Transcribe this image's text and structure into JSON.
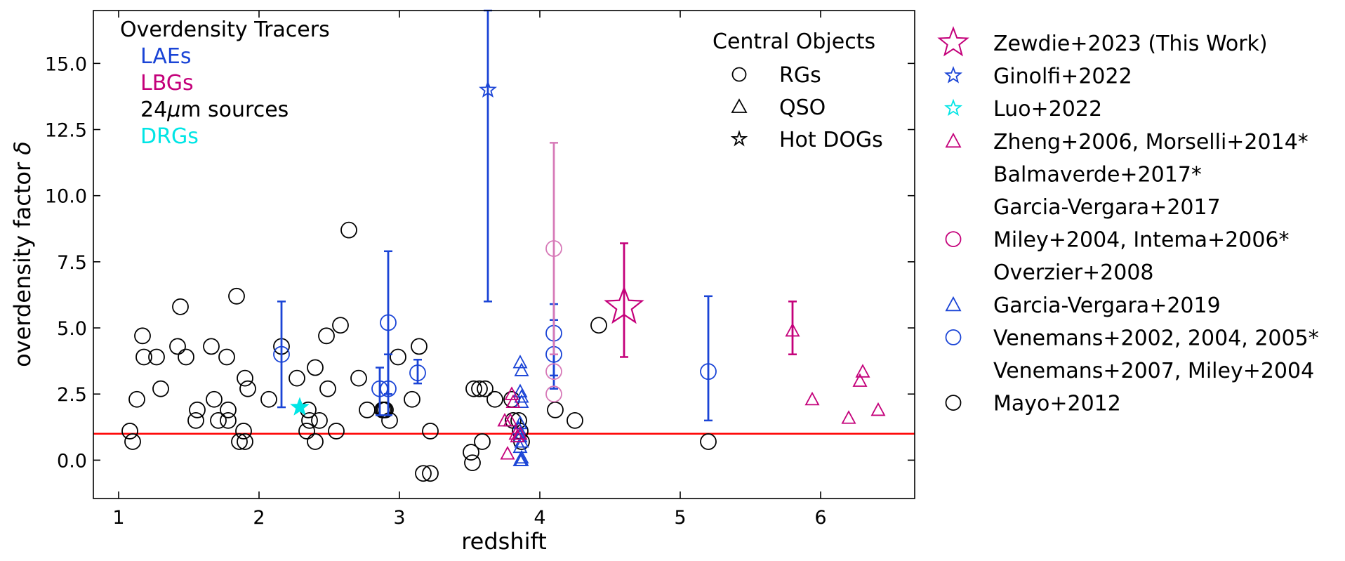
{
  "chart_data": {
    "type": "scatter",
    "title": "",
    "xlabel": "redshift",
    "ylabel": "overdensity factor δ",
    "ylabel_parts": {
      "text": "overdensity factor ",
      "symbol": "δ"
    },
    "xlim": [
      0.82,
      6.67
    ],
    "ylim": [
      -1.45,
      17.0
    ],
    "x_ticks": [
      1,
      2,
      3,
      4,
      5,
      6
    ],
    "x_tick_labels": [
      "1",
      "2",
      "3",
      "4",
      "5",
      "6"
    ],
    "y_ticks": [
      0.0,
      2.5,
      5.0,
      7.5,
      10.0,
      12.5,
      15.0
    ],
    "y_tick_labels": [
      "0.0",
      "2.5",
      "5.0",
      "7.5",
      "10.0",
      "12.5",
      "15.0"
    ],
    "reference_line": {
      "y": 1.0,
      "color": "#ff0000"
    },
    "colors": {
      "black": "#000000",
      "blue": "#1a44d6",
      "magenta": "#c4007a",
      "pink": "#d77ab8",
      "cyan": "#00e5e5",
      "red": "#ff0000"
    },
    "tracers_legend": {
      "title": "Overdensity Tracers",
      "items": [
        {
          "label": "LAEs",
          "color": "#1a44d6"
        },
        {
          "label": "LBGs",
          "color": "#c4007a"
        },
        {
          "label": "24μm sources",
          "label_prefix": "24",
          "label_mu": "μ",
          "label_suffix": "m sources",
          "color": "#000000"
        },
        {
          "label": "DRGs",
          "color": "#00e5e5"
        }
      ]
    },
    "central_legend": {
      "title": "Central Objects",
      "items": [
        {
          "label": "RGs",
          "marker": "circle"
        },
        {
          "label": "QSO",
          "marker": "triangle"
        },
        {
          "label": "Hot DOGs",
          "marker": "star"
        }
      ]
    },
    "refs_legend": [
      {
        "label": "Zewdie+2023 (This Work)",
        "marker": "star",
        "color": "#c4007a",
        "size": "big"
      },
      {
        "label": "Ginolfi+2022",
        "marker": "star",
        "color": "#1a44d6"
      },
      {
        "label": "Luo+2022",
        "marker": "star",
        "color": "#00e5e5"
      },
      {
        "label": "Zheng+2006, Morselli+2014*",
        "marker": "triangle",
        "color": "#c4007a"
      },
      {
        "label": "Balmaverde+2017*",
        "marker": "none"
      },
      {
        "label": "Garcia-Vergara+2017",
        "marker": "none"
      },
      {
        "label": "Miley+2004, Intema+2006*",
        "marker": "circle",
        "color": "#c4007a"
      },
      {
        "label": "Overzier+2008",
        "marker": "none"
      },
      {
        "label": "Garcia-Vergara+2019",
        "marker": "triangle",
        "color": "#1a44d6"
      },
      {
        "label": "Venemans+2002, 2004, 2005*",
        "marker": "circle",
        "color": "#1a44d6"
      },
      {
        "label": "Venemans+2007, Miley+2004",
        "marker": "none"
      },
      {
        "label": "Mayo+2012",
        "marker": "circle",
        "color": "#000000"
      }
    ],
    "series": [
      {
        "name": "Mayo+2012",
        "marker": "circle",
        "color": "#000000",
        "x": [
          1.08,
          1.1,
          1.13,
          1.17,
          1.18,
          1.27,
          1.3,
          1.42,
          1.44,
          1.48,
          1.55,
          1.56,
          1.66,
          1.68,
          1.71,
          1.77,
          1.78,
          1.78,
          1.84,
          1.86,
          1.89,
          1.9,
          1.9,
          1.92,
          2.07,
          2.16,
          2.27,
          2.34,
          2.35,
          2.36,
          2.4,
          2.4,
          2.43,
          2.48,
          2.49,
          2.55,
          2.58,
          2.64,
          2.71,
          2.77,
          2.88,
          2.89,
          2.9,
          2.93,
          2.99,
          3.09,
          3.14,
          3.17,
          3.22,
          3.22,
          3.51,
          3.52,
          3.53,
          3.57,
          3.59,
          3.61,
          3.68,
          3.8,
          3.81,
          3.85,
          3.86,
          3.87,
          4.11,
          4.25,
          4.42,
          5.2
        ],
        "y": [
          1.1,
          0.7,
          2.3,
          4.7,
          3.9,
          3.9,
          2.7,
          4.3,
          5.8,
          3.9,
          1.5,
          1.9,
          4.3,
          2.3,
          1.5,
          3.9,
          1.9,
          1.5,
          6.2,
          0.7,
          1.1,
          0.7,
          3.1,
          2.7,
          2.3,
          4.3,
          3.1,
          1.1,
          1.9,
          1.5,
          3.5,
          0.7,
          1.5,
          4.7,
          2.7,
          1.1,
          5.1,
          8.7,
          3.1,
          1.9,
          1.9,
          1.9,
          1.9,
          1.5,
          3.9,
          2.3,
          4.3,
          -0.5,
          -0.5,
          1.1,
          0.3,
          -0.1,
          2.7,
          2.7,
          0.7,
          2.7,
          2.3,
          2.3,
          1.5,
          1.5,
          1.1,
          0.7,
          1.9,
          1.5,
          5.1,
          0.7
        ]
      },
      {
        "name": "Venemans+2002, 2004, 2005*",
        "marker": "circle",
        "color": "#1a44d6",
        "x": [
          2.16,
          2.86,
          2.92,
          2.92,
          3.13,
          4.1,
          4.1,
          5.2
        ],
        "y": [
          4.0,
          2.7,
          5.2,
          2.7,
          3.3,
          4.8,
          4.0,
          3.35
        ],
        "err": [
          [
            2.0,
            6.0
          ],
          [
            1.7,
            3.5
          ],
          [
            2.5,
            7.9
          ],
          [
            1.7,
            4.0
          ],
          [
            2.9,
            3.8
          ],
          [
            2.7,
            5.9
          ],
          [
            3.2,
            5.3
          ],
          [
            1.5,
            6.2
          ]
        ]
      },
      {
        "name": "Miley+2004, Intema+2006*",
        "marker": "circle",
        "color": "#d77ab8",
        "x": [
          4.1,
          4.1,
          4.1
        ],
        "y": [
          8.0,
          3.35,
          2.5
        ],
        "err": [
          [
            4.0,
            12.0
          ],
          null,
          null
        ]
      },
      {
        "name": "Garcia-Vergara+2019",
        "marker": "triangle",
        "color": "#1a44d6",
        "x": [
          3.86,
          3.87,
          3.86,
          3.87,
          3.87,
          3.86,
          3.85,
          3.86,
          3.87,
          3.86,
          3.87,
          3.86,
          3.87
        ],
        "y": [
          3.7,
          3.4,
          2.6,
          2.4,
          2.2,
          1.4,
          1.2,
          0.9,
          0.7,
          0.5,
          0.1,
          0.0,
          0.0
        ]
      },
      {
        "name": "Zheng+2006, Morselli+2014*",
        "marker": "triangle",
        "color": "#c4007a",
        "x": [
          3.75,
          3.77,
          3.79,
          3.8,
          3.81,
          3.83,
          3.84,
          3.86,
          5.8,
          5.94,
          6.2,
          6.28,
          6.3,
          6.41
        ],
        "y": [
          1.5,
          0.25,
          1.5,
          2.5,
          2.2,
          1.0,
          0.9,
          1.0,
          4.9,
          2.3,
          1.6,
          3.0,
          3.35,
          1.9
        ],
        "err": [
          null,
          null,
          null,
          null,
          null,
          null,
          null,
          null,
          [
            4.0,
            6.0
          ],
          null,
          null,
          null,
          null,
          null
        ]
      },
      {
        "name": "Ginolfi+2022",
        "marker": "star",
        "color": "#1a44d6",
        "x": [
          3.63
        ],
        "y": [
          14.0
        ],
        "err": [
          [
            6.0,
            17.0
          ]
        ]
      },
      {
        "name": "Luo+2022",
        "marker": "star",
        "color": "#00e5e5",
        "x": [
          2.29
        ],
        "y": [
          2.0
        ],
        "filled": true
      },
      {
        "name": "Zewdie+2023 (This Work)",
        "marker": "star",
        "color": "#c4007a",
        "x": [
          4.6
        ],
        "y": [
          5.8
        ],
        "err": [
          [
            3.9,
            8.2
          ]
        ],
        "size": "big"
      }
    ]
  }
}
